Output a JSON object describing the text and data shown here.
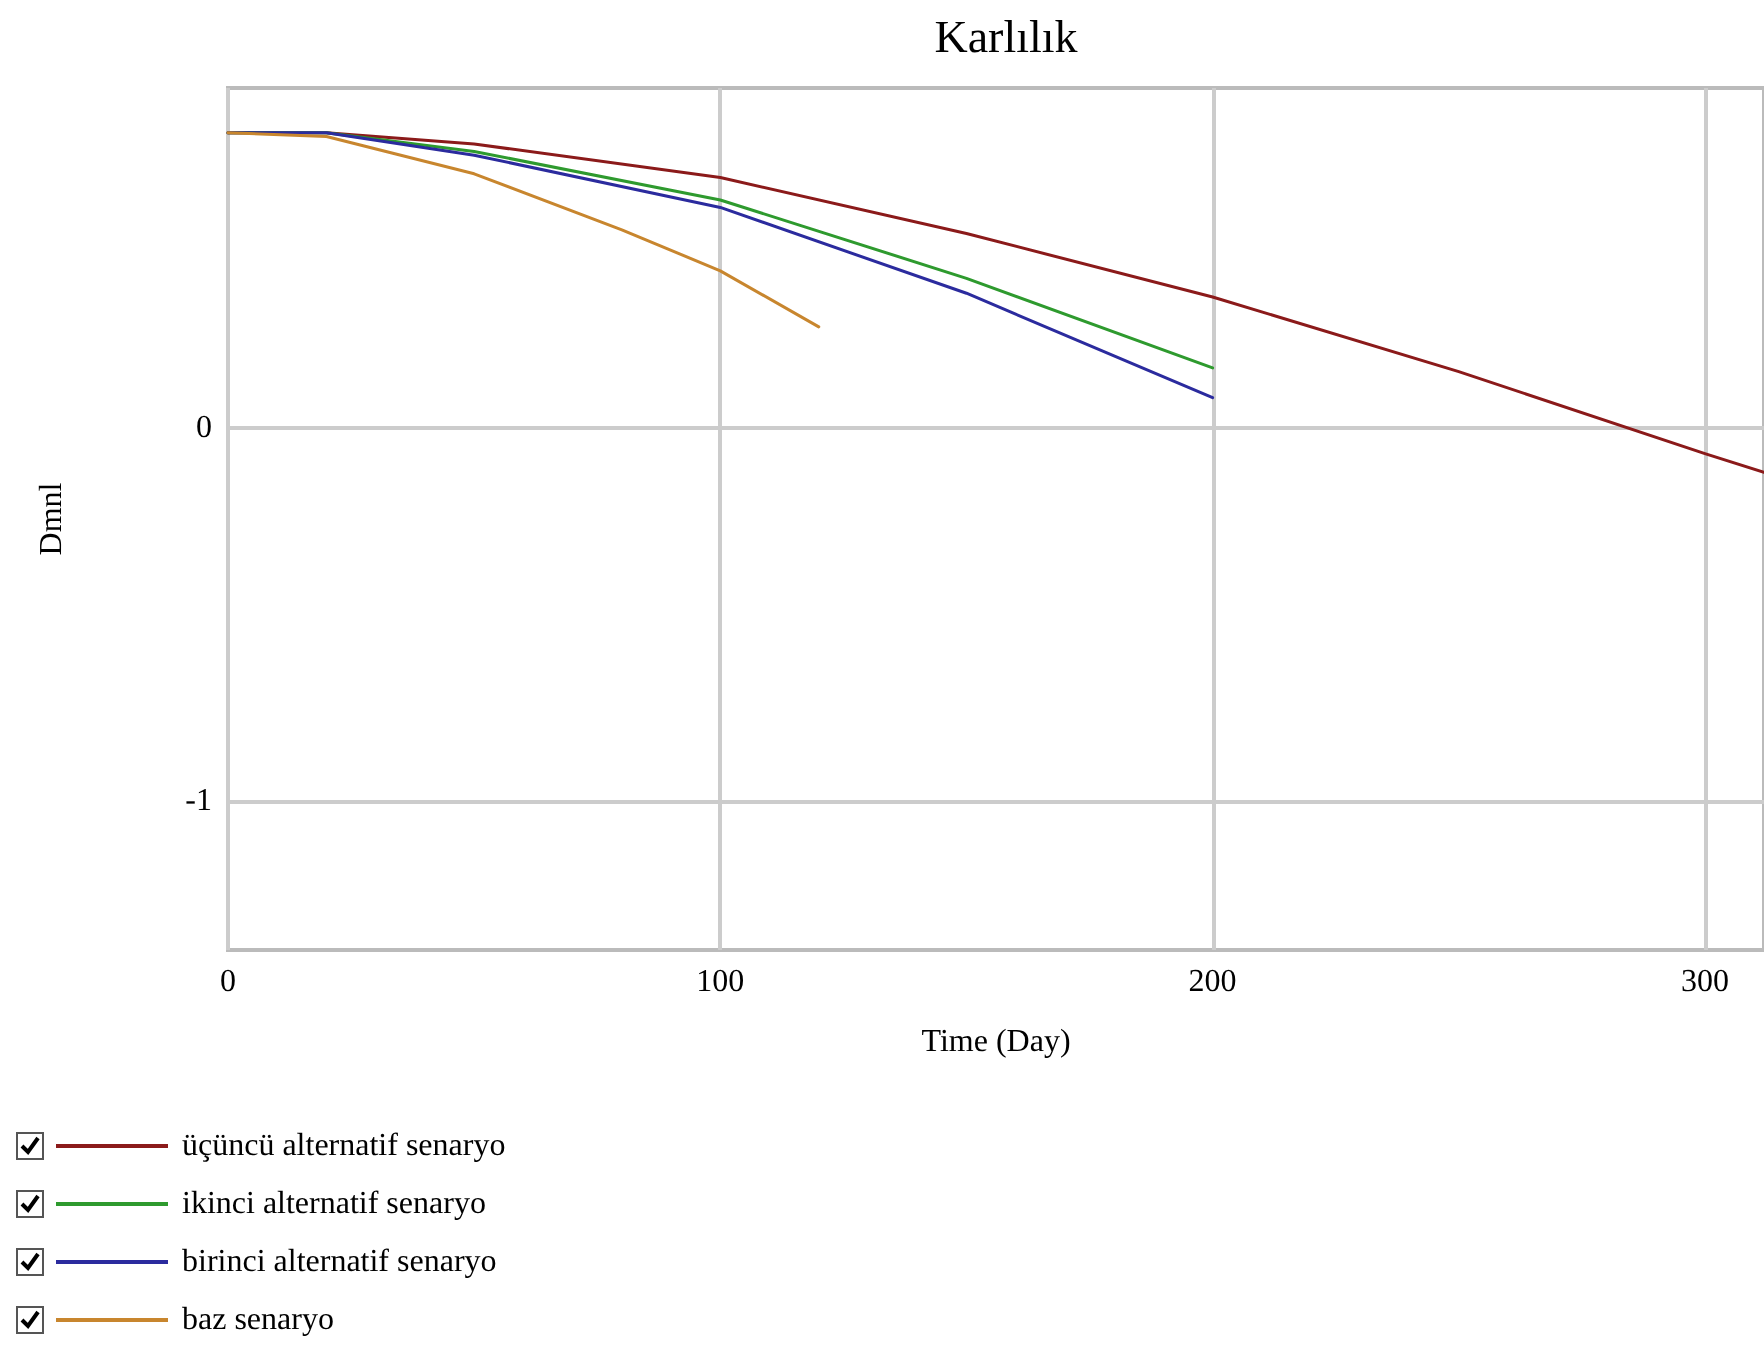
{
  "chart_data": {
    "type": "line",
    "title": "Karlılık",
    "xlabel": "Time (Day)",
    "ylabel": "Dmnl",
    "xlim": [
      0,
      312
    ],
    "xticks": [
      0,
      100,
      200,
      300
    ],
    "ylim": [
      -1.4,
      0.91
    ],
    "yticks": [
      -1,
      0
    ],
    "grid": true,
    "legend": "bottom left",
    "marker": "none",
    "line_style": "solid",
    "series": [
      {
        "name": "üçüncü alternatif senaryo",
        "color": "#8b1a1a",
        "x": [
          0,
          20,
          50,
          100,
          150,
          200,
          250,
          300,
          312
        ],
        "values": [
          0.79,
          0.79,
          0.76,
          0.67,
          0.52,
          0.35,
          0.15,
          -0.07,
          -0.12
        ]
      },
      {
        "name": "ikinci alternatif senaryo",
        "color": "#2e9a2e",
        "x": [
          0,
          20,
          50,
          100,
          150,
          200
        ],
        "values": [
          0.79,
          0.79,
          0.74,
          0.61,
          0.4,
          0.16
        ]
      },
      {
        "name": "birinci alternatif senaryo",
        "color": "#2b2b9e",
        "x": [
          0,
          20,
          50,
          100,
          150,
          200
        ],
        "values": [
          0.79,
          0.79,
          0.73,
          0.59,
          0.36,
          0.08
        ]
      },
      {
        "name": "baz senaryo",
        "color": "#c8862e",
        "x": [
          0,
          20,
          50,
          80,
          100,
          120
        ],
        "values": [
          0.79,
          0.78,
          0.68,
          0.53,
          0.42,
          0.27
        ]
      }
    ]
  }
}
